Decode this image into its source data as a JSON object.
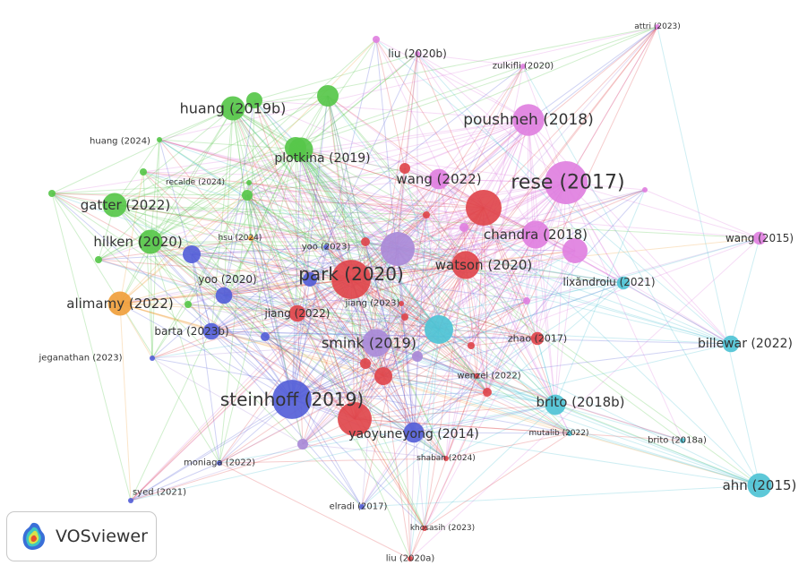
{
  "brand": {
    "name": "VOSviewer"
  },
  "clusters": {
    "green": "#57c74a",
    "pink": "#e080e0",
    "red": "#e0474c",
    "blue": "#5560d8",
    "cyan": "#4fc3d5",
    "orange": "#f0a03c",
    "purple": "#a98ad8"
  },
  "nodes": [
    {
      "id": "rese2017",
      "label": "rese (2017)",
      "cluster": "pink",
      "weight": 10
    },
    {
      "id": "poushneh2018",
      "label": "poushneh (2018)",
      "cluster": "pink",
      "weight": 7
    },
    {
      "id": "chandra2018",
      "label": "chandra (2018)",
      "cluster": "pink",
      "weight": 6
    },
    {
      "id": "wang2022",
      "label": "wang (2022)",
      "cluster": "pink",
      "weight": 4
    },
    {
      "id": "liu2020b",
      "label": "liu (2020b)",
      "cluster": "pink",
      "weight": 1
    },
    {
      "id": "zulkifli2020",
      "label": "zulkifli (2020)",
      "cluster": "pink",
      "weight": 1
    },
    {
      "id": "attri2023",
      "label": "attri (2023)",
      "cluster": "pink",
      "weight": 1
    },
    {
      "id": "wang2015",
      "label": "wang (2015)",
      "cluster": "pink",
      "weight": 2
    },
    {
      "id": "huang2019b",
      "label": "huang (2019b)",
      "cluster": "green",
      "weight": 5
    },
    {
      "id": "plotkina2019",
      "label": "plotkina (2019)",
      "cluster": "green",
      "weight": 5
    },
    {
      "id": "gatter2022",
      "label": "gatter (2022)",
      "cluster": "green",
      "weight": 5
    },
    {
      "id": "hilken2020",
      "label": "hilken (2020)",
      "cluster": "green",
      "weight": 5
    },
    {
      "id": "huang2024",
      "label": "huang (2024)",
      "cluster": "green",
      "weight": 1
    },
    {
      "id": "recalde2024",
      "label": "recalde (2024)",
      "cluster": "green",
      "weight": 1
    },
    {
      "id": "hsu2024",
      "label": "hsu (2024)",
      "cluster": "orange",
      "weight": 1
    },
    {
      "id": "alimamy2022",
      "label": "alimamy (2022)",
      "cluster": "orange",
      "weight": 5
    },
    {
      "id": "park2020",
      "label": "park (2020)",
      "cluster": "red",
      "weight": 9
    },
    {
      "id": "watson2020",
      "label": "watson (2020)",
      "cluster": "red",
      "weight": 6
    },
    {
      "id": "jiang2022",
      "label": "jiang (2022)",
      "cluster": "red",
      "weight": 3
    },
    {
      "id": "jiang2023",
      "label": "jiang (2023)",
      "cluster": "red",
      "weight": 1
    },
    {
      "id": "zhao2017",
      "label": "zhao (2017)",
      "cluster": "red",
      "weight": 2
    },
    {
      "id": "wenzel2022",
      "label": "wenzel (2022)",
      "cluster": "red",
      "weight": 1
    },
    {
      "id": "shaban2024",
      "label": "shaban (2024)",
      "cluster": "red",
      "weight": 1
    },
    {
      "id": "khosasih2023",
      "label": "khosasih (2023)",
      "cluster": "red",
      "weight": 1
    },
    {
      "id": "liu2020a",
      "label": "liu (2020a)",
      "cluster": "red",
      "weight": 1
    },
    {
      "id": "yoo2023",
      "label": "yoo (2023)",
      "cluster": "blue",
      "weight": 1
    },
    {
      "id": "yoo2020",
      "label": "yoo (2020)",
      "cluster": "blue",
      "weight": 3
    },
    {
      "id": "barta2023b",
      "label": "barta (2023b)",
      "cluster": "blue",
      "weight": 3
    },
    {
      "id": "steinhoff2019",
      "label": "steinhoff (2019)",
      "cluster": "blue",
      "weight": 9
    },
    {
      "id": "yaoyuneyong2014",
      "label": "yaoyuneyong (2014)",
      "cluster": "blue",
      "weight": 4
    },
    {
      "id": "jeganathan2023",
      "label": "jeganathan (2023)",
      "cluster": "blue",
      "weight": 1
    },
    {
      "id": "moniaga2022",
      "label": "moniaga (2022)",
      "cluster": "blue",
      "weight": 1
    },
    {
      "id": "syed2021",
      "label": "syed (2021)",
      "cluster": "blue",
      "weight": 1
    },
    {
      "id": "elradi2017",
      "label": "elradi (2017)",
      "cluster": "blue",
      "weight": 1
    },
    {
      "id": "smink2019",
      "label": "smink (2019)",
      "cluster": "purple",
      "weight": 6
    },
    {
      "id": "lixandroiu2021",
      "label": "lixăndroiu (2021)",
      "cluster": "cyan",
      "weight": 2
    },
    {
      "id": "billewar2022",
      "label": "billewar (2022)",
      "cluster": "cyan",
      "weight": 3
    },
    {
      "id": "brito2018b",
      "label": "brito (2018b)",
      "cluster": "cyan",
      "weight": 4
    },
    {
      "id": "mutalib2022",
      "label": "mutalib (2022)",
      "cluster": "cyan",
      "weight": 1
    },
    {
      "id": "brito2018a",
      "label": "brito (2018a)",
      "cluster": "cyan",
      "weight": 1
    },
    {
      "id": "ahn2015",
      "label": "ahn (2015)",
      "cluster": "cyan",
      "weight": 5
    }
  ]
}
